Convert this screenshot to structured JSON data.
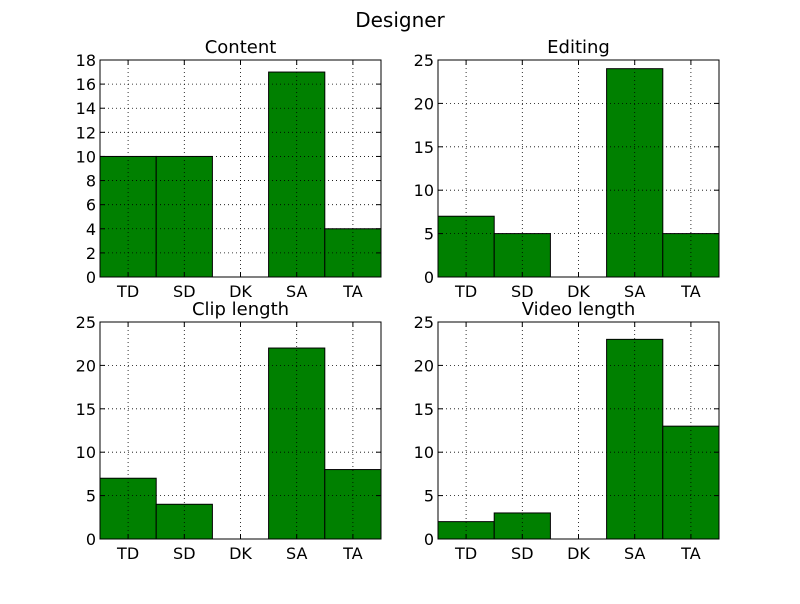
{
  "figure": {
    "title": "Designer"
  },
  "chart_data": [
    {
      "type": "bar",
      "title": "Content",
      "categories": [
        "TD",
        "SD",
        "DK",
        "SA",
        "TA"
      ],
      "values": [
        10,
        10,
        0,
        17,
        4
      ],
      "ylim": [
        0,
        18
      ],
      "yticks": [
        0,
        2,
        4,
        6,
        8,
        10,
        12,
        14,
        16,
        18
      ],
      "grid": true,
      "bar_color": "#008000"
    },
    {
      "type": "bar",
      "title": "Editing",
      "categories": [
        "TD",
        "SD",
        "DK",
        "SA",
        "TA"
      ],
      "values": [
        7,
        5,
        0,
        24,
        5
      ],
      "ylim": [
        0,
        25
      ],
      "yticks": [
        0,
        5,
        10,
        15,
        20,
        25
      ],
      "grid": true,
      "bar_color": "#008000"
    },
    {
      "type": "bar",
      "title": "Clip length",
      "categories": [
        "TD",
        "SD",
        "DK",
        "SA",
        "TA"
      ],
      "values": [
        7,
        4,
        0,
        22,
        8
      ],
      "ylim": [
        0,
        25
      ],
      "yticks": [
        0,
        5,
        10,
        15,
        20,
        25
      ],
      "grid": true,
      "bar_color": "#008000"
    },
    {
      "type": "bar",
      "title": "Video length",
      "categories": [
        "TD",
        "SD",
        "DK",
        "SA",
        "TA"
      ],
      "values": [
        2,
        3,
        0,
        23,
        13
      ],
      "ylim": [
        0,
        25
      ],
      "yticks": [
        0,
        5,
        10,
        15,
        20,
        25
      ],
      "grid": true,
      "bar_color": "#008000"
    }
  ]
}
